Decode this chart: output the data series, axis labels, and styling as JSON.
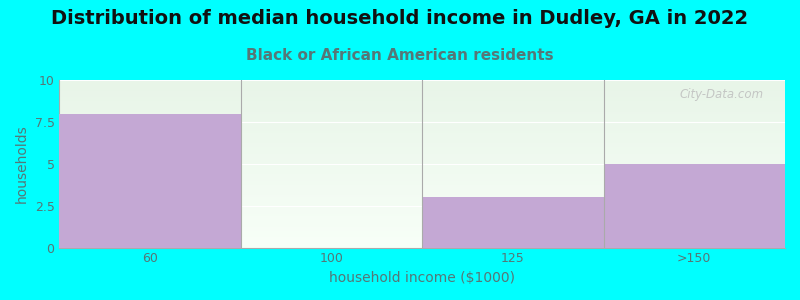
{
  "title": "Distribution of median household income in Dudley, GA in 2022",
  "subtitle": "Black or African American residents",
  "categories": [
    "60",
    "100",
    "125",
    ">150"
  ],
  "values": [
    8,
    0,
    3,
    5
  ],
  "bar_color": "#C4A8D4",
  "background_color": "#00FFFF",
  "plot_bg_top": "#E8F5E8",
  "plot_bg_bottom": "#F8FFF8",
  "xlabel": "household income ($1000)",
  "ylabel": "households",
  "ylim": [
    0,
    10
  ],
  "yticks": [
    0,
    2.5,
    5,
    7.5,
    10
  ],
  "title_fontsize": 14,
  "subtitle_fontsize": 11,
  "subtitle_color": "#557777",
  "watermark": "City-Data.com",
  "tick_label_color": "#557777",
  "axis_label_color": "#557777"
}
